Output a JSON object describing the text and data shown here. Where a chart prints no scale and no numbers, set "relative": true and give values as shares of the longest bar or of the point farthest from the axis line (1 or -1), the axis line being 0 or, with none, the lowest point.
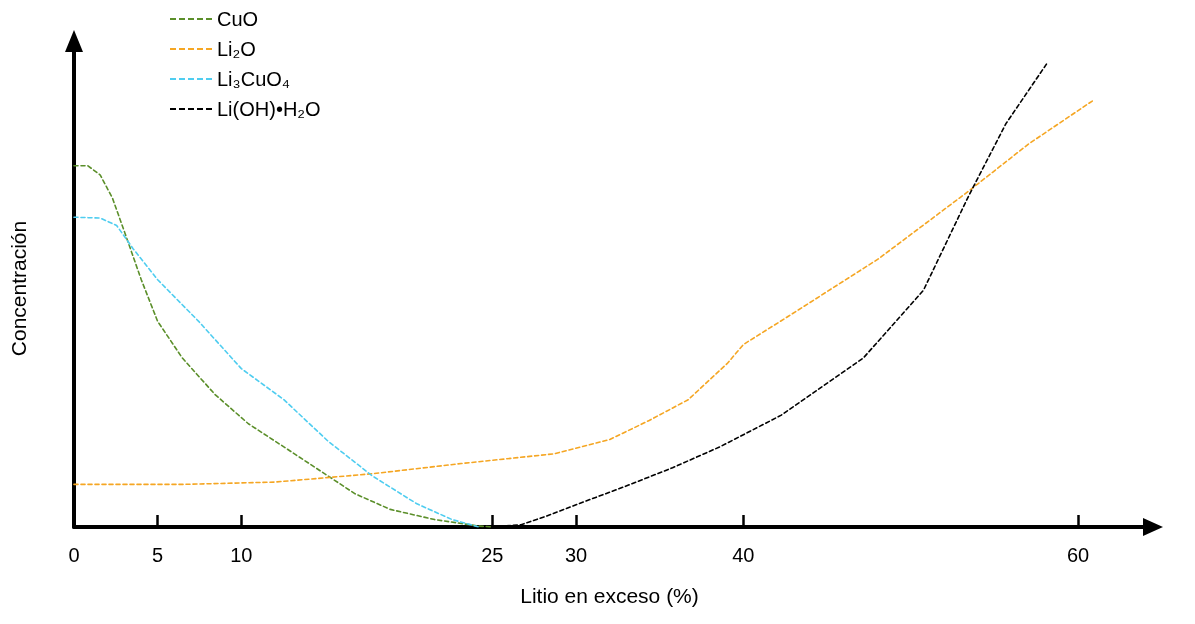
{
  "chart_data": {
    "type": "line",
    "xlabel": "Litio en exceso (%)",
    "ylabel": "Concentración",
    "relative": true,
    "xlim": [
      0,
      64
    ],
    "xticks": [
      0,
      5,
      10,
      25,
      30,
      40,
      60
    ],
    "grid": false,
    "legend": "top left",
    "marker": "none",
    "line_style": "dashed",
    "series": [
      {
        "name": "CuO",
        "color": "#5b8f2a",
        "x": [
          0,
          0.83,
          1.57,
          2.3,
          3.04,
          4.02,
          5,
          6.47,
          8.43,
          10.42,
          12.54,
          15.19,
          16.78,
          18.9,
          21.55,
          24.2,
          25
        ],
        "values": [
          0.78,
          0.78,
          0.76,
          0.71,
          0.635,
          0.534,
          0.444,
          0.365,
          0.286,
          0.223,
          0.173,
          0.11,
          0.072,
          0.038,
          0.016,
          0.002,
          0
        ]
      },
      {
        "name": "Li₂O",
        "color": "#f5a623",
        "x": [
          0,
          6.47,
          12.01,
          17.84,
          23.14,
          28.68,
          32.02,
          34.37,
          36.71,
          39.06,
          40,
          42.69,
          48.07,
          53.45,
          57.04,
          60.9
        ],
        "values": [
          0.092,
          0.092,
          0.097,
          0.115,
          0.137,
          0.158,
          0.189,
          0.23,
          0.275,
          0.354,
          0.394,
          0.455,
          0.579,
          0.725,
          0.827,
          0.921
        ]
      },
      {
        "name": "Li₃CuO₄",
        "color": "#4fcdf0",
        "x": [
          0,
          1.57,
          2.55,
          3.53,
          5,
          7.45,
          10,
          12.54,
          15.19,
          17.84,
          20.49,
          22.6,
          24.2
        ],
        "values": [
          0.669,
          0.667,
          0.651,
          0.601,
          0.534,
          0.444,
          0.342,
          0.275,
          0.185,
          0.11,
          0.05,
          0.016,
          0
        ]
      },
      {
        "name": "Li(OH)•H₂O",
        "color": "#000000",
        "x": [
          25,
          26.72,
          28.19,
          30.14,
          32.96,
          35.77,
          38.59,
          42.24,
          47.17,
          50.76,
          53.45,
          55.69,
          58.12
        ],
        "values": [
          0,
          0.005,
          0.023,
          0.05,
          0.088,
          0.128,
          0.173,
          0.241,
          0.365,
          0.511,
          0.714,
          0.871,
          1
        ]
      }
    ]
  }
}
